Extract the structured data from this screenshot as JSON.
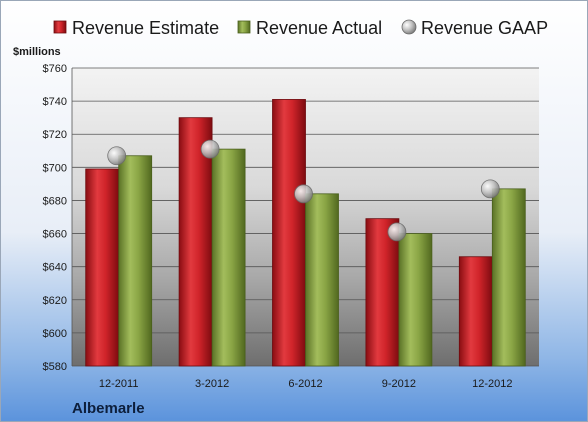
{
  "chart_data": {
    "type": "bar",
    "title": "",
    "ylabel": "$millions",
    "xlabel": "",
    "company": "Albemarle",
    "categories": [
      "12-2011",
      "3-2012",
      "6-2012",
      "9-2012",
      "12-2012"
    ],
    "series": [
      {
        "name": "Revenue Estimate",
        "kind": "bar",
        "color": "#c8161d",
        "values": [
          699,
          730,
          741,
          669,
          646
        ]
      },
      {
        "name": "Revenue Actual",
        "kind": "bar",
        "color": "#7f9b3c",
        "values": [
          707,
          711,
          684,
          660,
          687
        ]
      },
      {
        "name": "Revenue GAAP",
        "kind": "marker",
        "color": "#b9b9b9",
        "values": [
          707,
          711,
          684,
          661,
          687
        ]
      }
    ],
    "ylim": [
      580,
      760
    ],
    "yticks": [
      580,
      600,
      620,
      640,
      660,
      680,
      700,
      720,
      740,
      760
    ],
    "ytick_labels": [
      "$580",
      "$600",
      "$620",
      "$640",
      "$660",
      "$680",
      "$700",
      "$720",
      "$740",
      "$760"
    ],
    "grid": true,
    "legend_position": "top"
  }
}
